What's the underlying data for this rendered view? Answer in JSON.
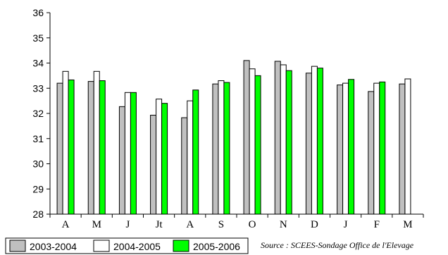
{
  "chart_data": {
    "type": "bar",
    "categories": [
      "A",
      "M",
      "J",
      "Jt",
      "A",
      "S",
      "O",
      "N",
      "D",
      "J",
      "F",
      "M"
    ],
    "series": [
      {
        "name": "2003-2004",
        "color": "#c0c0c0",
        "values": [
          33.2,
          33.27,
          32.27,
          31.93,
          31.83,
          33.17,
          34.1,
          34.07,
          33.6,
          33.13,
          32.87,
          33.17
        ]
      },
      {
        "name": "2004-2005",
        "color": "#ffffff",
        "values": [
          33.67,
          33.67,
          32.83,
          32.57,
          32.5,
          33.3,
          33.77,
          33.93,
          33.87,
          33.2,
          33.2,
          33.37
        ]
      },
      {
        "name": "2005-2006",
        "color": "#00ff00",
        "values": [
          33.33,
          33.3,
          32.83,
          32.4,
          32.93,
          33.23,
          33.5,
          33.7,
          33.8,
          33.35,
          33.25,
          null
        ]
      }
    ],
    "ylim": [
      28,
      36
    ],
    "yticks": [
      28,
      29,
      30,
      31,
      32,
      33,
      34,
      35,
      36
    ],
    "title": "",
    "xlabel": "",
    "ylabel": "",
    "grid": false,
    "legend_position": "bottom-left",
    "annotation": "Source : SCEES-Sondage Office de l'Elevage"
  }
}
